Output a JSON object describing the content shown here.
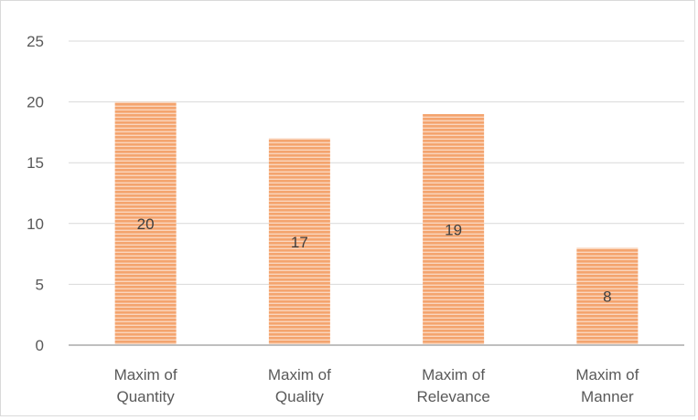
{
  "chart_data": {
    "type": "bar",
    "categories": [
      [
        "Maxim of",
        "Quantity"
      ],
      [
        "Maxim of",
        "Quality"
      ],
      [
        "Maxim of",
        "Relevance"
      ],
      [
        "Maxim of",
        "Manner"
      ]
    ],
    "values": [
      20,
      17,
      19,
      8
    ],
    "data_labels": [
      "20",
      "17",
      "19",
      "8"
    ],
    "title": "",
    "xlabel": "",
    "ylabel": "",
    "ylim": [
      0,
      25
    ],
    "yticks": [
      0,
      5,
      10,
      15,
      20,
      25
    ],
    "grid": true,
    "legend": "none",
    "bar_color": "#f4a46e",
    "bar_stripe_color": "#ffffff"
  }
}
